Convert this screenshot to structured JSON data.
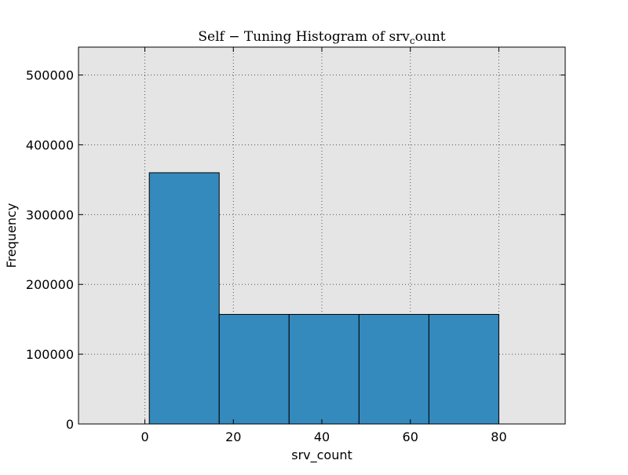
{
  "chart_data": {
    "type": "bar",
    "title": "Self − Tuning Histogram of srv",
    "title_subscript": "c",
    "title_suffix": "ount",
    "xlabel": "srv_count",
    "ylabel": "Frequency",
    "xlim": [
      -15,
      95
    ],
    "ylim": [
      0,
      540000
    ],
    "x_ticks": [
      0,
      20,
      40,
      60,
      80
    ],
    "y_ticks": [
      0,
      100000,
      200000,
      300000,
      400000,
      500000
    ],
    "grid": true,
    "bins": [
      {
        "x0": 1,
        "x1": 16.8,
        "value": 360000
      },
      {
        "x0": 16.8,
        "x1": 32.6,
        "value": 157000
      },
      {
        "x0": 32.6,
        "x1": 48.4,
        "value": 157000
      },
      {
        "x0": 48.4,
        "x1": 64.2,
        "value": 157000
      },
      {
        "x0": 64.2,
        "x1": 80,
        "value": 157000
      }
    ],
    "colors": {
      "bar": "#348abd",
      "plot_background": "#e5e5e5",
      "grid": "#555555"
    }
  }
}
